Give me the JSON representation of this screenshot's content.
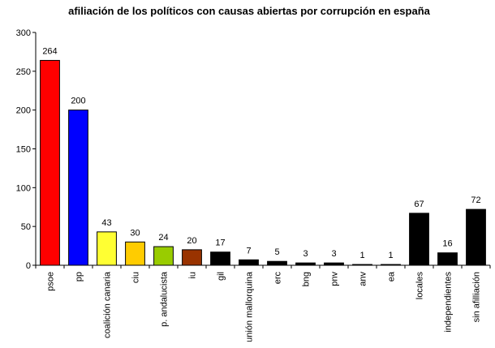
{
  "chart_data": {
    "type": "bar",
    "title": "afiliación de los políticos con causas abiertas por corrupción en españa",
    "xlabel": "",
    "ylabel": "",
    "ylim": [
      0,
      300
    ],
    "yticks": [
      0,
      50,
      100,
      150,
      200,
      250,
      300
    ],
    "grid": false,
    "legend": "none",
    "categories": [
      "psoe",
      "pp",
      "coalición canaria",
      "ciu",
      "p. andalucista",
      "iu",
      "gil",
      "unión mallorquina",
      "erc",
      "bng",
      "pnv",
      "anv",
      "ea",
      "locales",
      "independientes",
      "sin afilliación"
    ],
    "values": [
      264,
      200,
      43,
      30,
      24,
      20,
      17,
      7,
      5,
      3,
      3,
      1,
      1,
      67,
      16,
      72
    ],
    "colors": [
      "#ff0000",
      "#0000ff",
      "#ffff33",
      "#ffcc00",
      "#99cc00",
      "#993300",
      "#000000",
      "#000000",
      "#000000",
      "#000000",
      "#000000",
      "#000000",
      "#000000",
      "#000000",
      "#000000",
      "#000000"
    ]
  }
}
